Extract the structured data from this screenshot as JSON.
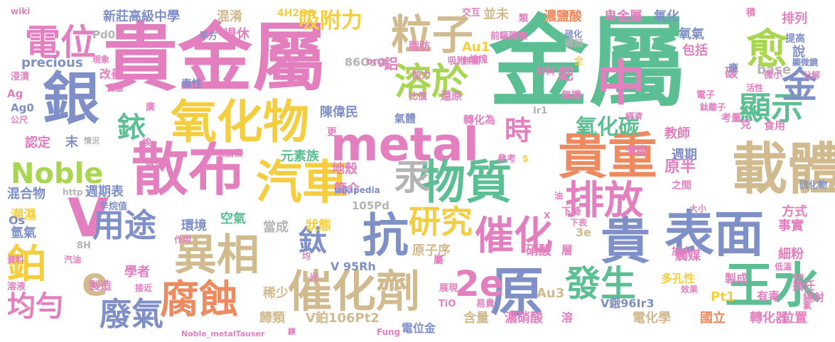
{
  "palette": {
    "green": "#5CBF93",
    "pink": "#E37FBF",
    "blue": "#7F8FC7",
    "yellow": "#F4CE3E",
    "tan": "#D1BB8E",
    "orange": "#EE8A5F",
    "lime": "#A9D651",
    "gray": "#B4B4B4"
  },
  "words": [
    {
      "text": "金屬",
      "color": "green"
    },
    {
      "text": "貴金屬",
      "color": "pink"
    },
    {
      "text": "metal",
      "color": "pink"
    },
    {
      "text": "散布",
      "color": "pink"
    },
    {
      "text": "氧化物",
      "color": "yellow"
    },
    {
      "text": "銀",
      "color": "blue"
    },
    {
      "text": "表面",
      "color": "blue"
    },
    {
      "text": "載體",
      "color": "tan"
    },
    {
      "text": "貴重",
      "color": "orange"
    },
    {
      "text": "汽車",
      "color": "yellow"
    },
    {
      "text": "物質",
      "color": "green"
    },
    {
      "text": "汞",
      "color": "gray"
    },
    {
      "text": "抗",
      "color": "blue"
    },
    {
      "text": "催化",
      "color": "pink"
    },
    {
      "text": "異相",
      "color": "tan"
    },
    {
      "text": "催化劑",
      "color": "tan"
    },
    {
      "text": "腐蝕",
      "color": "orange"
    },
    {
      "text": "原",
      "color": "blue"
    },
    {
      "text": "王水",
      "color": "green"
    },
    {
      "text": "貴",
      "color": "blue"
    },
    {
      "text": "中",
      "color": "pink"
    },
    {
      "text": "粒子",
      "color": "tan"
    },
    {
      "text": "溶於",
      "color": "lime"
    },
    {
      "text": "愈",
      "color": "lime"
    },
    {
      "text": "電位",
      "color": "pink"
    },
    {
      "text": "Noble",
      "color": "lime"
    },
    {
      "text": "排放",
      "color": "pink"
    },
    {
      "text": "研究",
      "color": "yellow"
    },
    {
      "text": "廢氣",
      "color": "blue"
    },
    {
      "text": "發生",
      "color": "green"
    },
    {
      "text": "2e",
      "color": "pink"
    },
    {
      "text": "e",
      "color": "tan"
    },
    {
      "text": "V",
      "color": "pink"
    },
    {
      "text": "鉑",
      "color": "yellow"
    },
    {
      "text": "鈦",
      "color": "blue"
    },
    {
      "text": "用途",
      "color": "blue"
    },
    {
      "text": "顯示",
      "color": "green"
    },
    {
      "text": "金",
      "color": "blue"
    },
    {
      "text": "時",
      "color": "pink"
    },
    {
      "text": "氧化碳",
      "color": "green"
    },
    {
      "text": "銥",
      "color": "green"
    },
    {
      "text": "均勻",
      "color": "pink"
    },
    {
      "text": "吸附力",
      "color": "yellow"
    },
    {
      "text": "新莊高級中學",
      "color": "blue"
    },
    {
      "text": "混淆",
      "color": "tan"
    },
    {
      "text": "4H2O0",
      "color": "yellow"
    },
    {
      "text": "並未",
      "color": "tan"
    },
    {
      "text": "濃鹽酸",
      "color": "orange"
    },
    {
      "text": "卑金屬",
      "color": "pink"
    },
    {
      "text": "氧化",
      "color": "blue"
    },
    {
      "text": "排列",
      "color": "pink"
    },
    {
      "text": "氧氣",
      "color": "blue"
    },
    {
      "text": "包括",
      "color": "pink"
    },
    {
      "text": "提高",
      "color": "blue"
    },
    {
      "text": "說",
      "color": "blue"
    },
    {
      "text": "precious",
      "color": "blue"
    },
    {
      "text": "退休",
      "color": "pink"
    },
    {
      "text": "平方",
      "color": "blue"
    },
    {
      "text": "Pd0",
      "color": "gray"
    },
    {
      "text": "86OsO",
      "color": "gray"
    },
    {
      "text": "Au1",
      "color": "yellow"
    },
    {
      "text": "base",
      "color": "gray"
    },
    {
      "text": "陳偉民",
      "color": "blue"
    },
    {
      "text": "教師",
      "color": "pink"
    },
    {
      "text": "週期",
      "color": "blue"
    },
    {
      "text": "元素族",
      "color": "green"
    },
    {
      "text": "地殼",
      "color": "pink"
    },
    {
      "text": "簡介",
      "color": "pink"
    },
    {
      "text": "週期表",
      "color": "blue"
    },
    {
      "text": "混合物",
      "color": "blue"
    },
    {
      "text": "潮濕",
      "color": "yellow"
    },
    {
      "text": "氫氣",
      "color": "blue"
    },
    {
      "text": "空氣",
      "color": "green"
    },
    {
      "text": "環境",
      "color": "blue"
    },
    {
      "text": "當成",
      "color": "gray"
    },
    {
      "text": "狀態",
      "color": "yellow"
    },
    {
      "text": "原子序",
      "color": "tan"
    },
    {
      "text": "硝酸",
      "color": "pink"
    },
    {
      "text": "觸媒",
      "color": "pink"
    },
    {
      "text": "事實",
      "color": "pink"
    },
    {
      "text": "細粉",
      "color": "pink"
    },
    {
      "text": "學者",
      "color": "pink"
    },
    {
      "text": "稀少",
      "color": "tan"
    },
    {
      "text": "歸類",
      "color": "tan"
    },
    {
      "text": "V鉑106Pt2",
      "color": "tan"
    },
    {
      "text": "含量",
      "color": "tan"
    },
    {
      "text": "濃硝酸",
      "color": "pink"
    },
    {
      "text": "電化學",
      "color": "tan"
    },
    {
      "text": "國立",
      "color": "orange"
    },
    {
      "text": "轉化器",
      "color": "pink"
    },
    {
      "text": "位置",
      "color": "pink"
    },
    {
      "text": "Pt1",
      "color": "yellow"
    },
    {
      "text": "Au3",
      "color": "tan"
    },
    {
      "text": "多孔性",
      "color": "yellow"
    },
    {
      "text": "製成",
      "color": "pink"
    },
    {
      "text": "有毒",
      "color": "pink"
    },
    {
      "text": "擔任",
      "color": "pink"
    },
    {
      "text": "V  95Rh",
      "color": "blue"
    },
    {
      "text": "電位金",
      "color": "blue"
    },
    {
      "text": "V鋨96Ir3",
      "color": "blue"
    },
    {
      "text": "溶",
      "color": "pink"
    },
    {
      "text": "辛烷值",
      "color": "blue"
    },
    {
      "text": "表面積",
      "color": "pink"
    },
    {
      "text": "製造",
      "color": "pink"
    },
    {
      "text": "接近",
      "color": "pink"
    },
    {
      "text": "汽油",
      "color": "pink"
    },
    {
      "text": "資料",
      "color": "pink"
    },
    {
      "text": "溶液",
      "color": "pink"
    },
    {
      "text": "作用",
      "color": "pink"
    },
    {
      "text": "8H",
      "color": "gray"
    },
    {
      "text": "Os",
      "color": "blue"
    },
    {
      "text": "105Pd",
      "color": "gray"
    },
    {
      "text": "wikipedia",
      "color": "blue"
    },
    {
      "text": "http",
      "color": "gray"
    },
    {
      "text": "Noble_metalTauser",
      "color": "pink"
    },
    {
      "text": "wiki",
      "color": "pink"
    },
    {
      "text": "現象",
      "color": "pink"
    },
    {
      "text": "浸漬",
      "color": "pink"
    },
    {
      "text": "Ag",
      "color": "pink"
    },
    {
      "text": "Ag0",
      "color": "blue"
    },
    {
      "text": "公尺",
      "color": "pink"
    },
    {
      "text": "貴金",
      "color": "pink"
    },
    {
      "text": "改善",
      "color": "pink"
    },
    {
      "text": "毒性",
      "color": "blue"
    },
    {
      "text": "認定",
      "color": "pink"
    },
    {
      "text": "末",
      "color": "blue"
    },
    {
      "text": "情況",
      "color": "gray"
    },
    {
      "text": "體積",
      "color": "pink"
    },
    {
      "text": "埃",
      "color": "pink"
    },
    {
      "text": "更",
      "color": "pink"
    },
    {
      "text": "廣",
      "color": "pink"
    },
    {
      "text": "鈀",
      "color": "pink"
    },
    {
      "text": "無機",
      "color": "pink"
    },
    {
      "text": "碳",
      "color": "pink"
    },
    {
      "text": "應",
      "color": "blue"
    },
    {
      "text": "活性",
      "color": "pink"
    },
    {
      "text": "微小",
      "color": "pink"
    },
    {
      "text": "顯微鏡",
      "color": "blue"
    },
    {
      "text": "分解",
      "color": "pink"
    },
    {
      "text": "材料",
      "color": "pink"
    },
    {
      "text": "鍵結",
      "color": "gray"
    },
    {
      "text": "硫化",
      "color": "blue"
    },
    {
      "text": "類",
      "color": "pink"
    },
    {
      "text": "交互",
      "color": "pink"
    },
    {
      "text": "積",
      "color": "pink"
    },
    {
      "text": "前驅鹽類",
      "color": "pink"
    },
    {
      "text": "脂肪",
      "color": "pink"
    },
    {
      "text": "無關",
      "color": "pink"
    },
    {
      "text": "吸附",
      "color": "pink"
    },
    {
      "text": "結塊",
      "color": "pink"
    },
    {
      "text": "能力",
      "color": "pink"
    },
    {
      "text": "比值",
      "color": "pink"
    },
    {
      "text": "還原",
      "color": "pink"
    },
    {
      "text": "氣體",
      "color": "blue"
    },
    {
      "text": "轉化為",
      "color": "pink"
    },
    {
      "text": "鋁",
      "color": "pink"
    },
    {
      "text": "org",
      "color": "pink"
    },
    {
      "text": "零",
      "color": "pink"
    },
    {
      "text": "間",
      "color": "pink"
    },
    {
      "text": "全",
      "color": "yellow"
    },
    {
      "text": "電子",
      "color": "pink"
    },
    {
      "text": "Ir1",
      "color": "gray"
    },
    {
      "text": "經濟",
      "color": "pink"
    },
    {
      "text": "鈦離子",
      "color": "pink"
    },
    {
      "text": "食用",
      "color": "pink"
    },
    {
      "text": "考量",
      "color": "pink"
    },
    {
      "text": "克",
      "color": "pink"
    },
    {
      "text": "薄膜",
      "color": "pink"
    },
    {
      "text": "參考",
      "color": "pink"
    },
    {
      "text": "S",
      "color": "yellow"
    },
    {
      "text": "原半",
      "color": "pink"
    },
    {
      "text": "之間",
      "color": "pink"
    },
    {
      "text": "硫化物",
      "color": "blue"
    },
    {
      "text": "方式",
      "color": "pink"
    },
    {
      "text": "大小",
      "color": "pink"
    },
    {
      "text": "油",
      "color": "pink"
    },
    {
      "text": "下降",
      "color": "pink"
    },
    {
      "text": "X",
      "color": "pink"
    },
    {
      "text": "下表",
      "color": "pink"
    },
    {
      "text": "3e",
      "color": "tan"
    },
    {
      "text": "層",
      "color": "pink"
    },
    {
      "text": "加大",
      "color": "pink"
    },
    {
      "text": "低溫",
      "color": "pink"
    },
    {
      "text": "en",
      "color": "pink"
    },
    {
      "text": "效果",
      "color": "pink"
    },
    {
      "text": "光",
      "color": "pink"
    },
    {
      "text": "均",
      "color": "pink"
    },
    {
      "text": "屬",
      "color": "pink"
    },
    {
      "text": "展現",
      "color": "pink"
    },
    {
      "text": "TiO",
      "color": "pink"
    },
    {
      "text": "易貴",
      "color": "pink"
    },
    {
      "text": "Fung",
      "color": "pink"
    },
    {
      "text": "鍊",
      "color": "pink"
    },
    {
      "text": "繞射",
      "color": "pink"
    },
    {
      "text": "氯",
      "color": "pink"
    }
  ]
}
